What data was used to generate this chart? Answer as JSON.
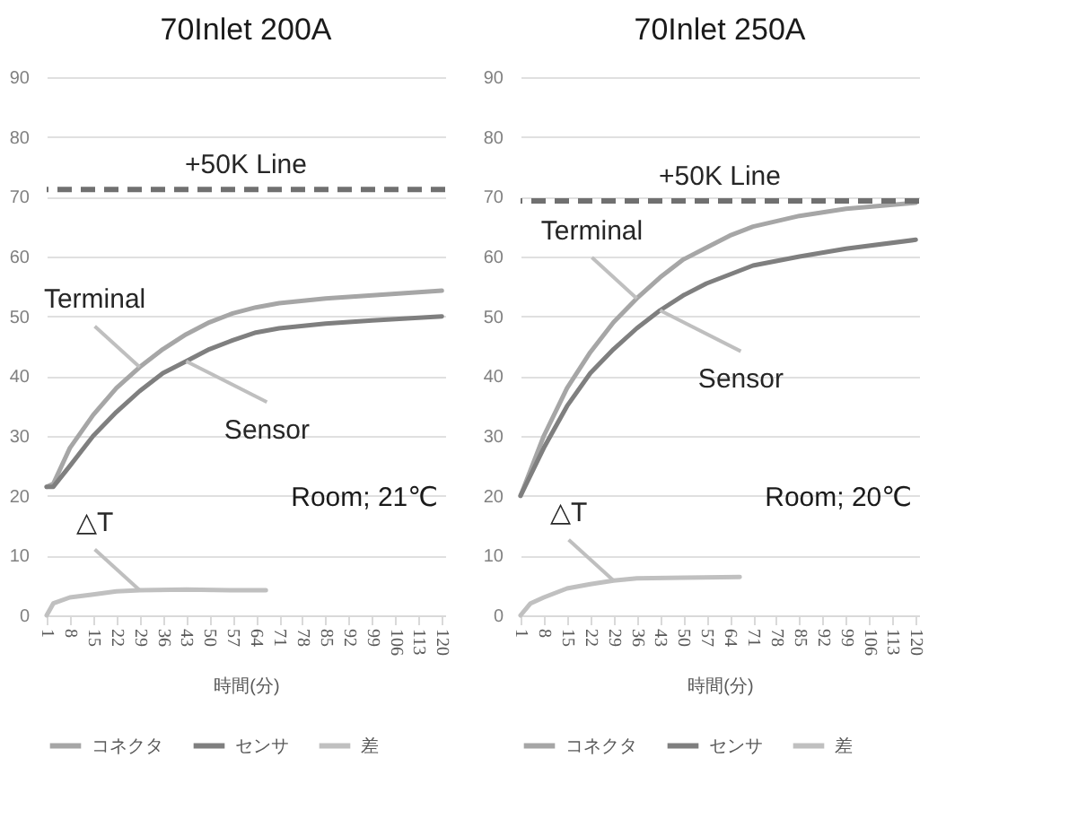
{
  "chart_data": [
    {
      "type": "line",
      "title": "70Inlet 200A",
      "xlabel": "時間(分)",
      "xlim": [
        1,
        121
      ],
      "xticks": [
        1,
        8,
        15,
        22,
        29,
        36,
        43,
        50,
        57,
        64,
        71,
        78,
        85,
        92,
        99,
        106,
        113,
        120
      ],
      "ylim": [
        0,
        90
      ],
      "yticks": [
        0,
        10,
        20,
        30,
        40,
        50,
        60,
        70,
        80,
        90
      ],
      "grid": "y",
      "legend": "bottom",
      "line_style": "solid",
      "series": [
        {
          "name": "コネクタ",
          "color": "#a6a6a6",
          "x": [
            1,
            3,
            8,
            15,
            22,
            29,
            36,
            43,
            50,
            57,
            64,
            71,
            85,
            99,
            120
          ],
          "values": [
            21.5,
            22,
            28,
            33.5,
            38,
            41.5,
            44.5,
            47,
            49,
            50.5,
            51.5,
            52.2,
            53,
            53.5,
            54.3
          ]
        },
        {
          "name": "センサ",
          "color": "#7f7f7f",
          "x": [
            1,
            3,
            8,
            15,
            22,
            29,
            36,
            43,
            50,
            57,
            64,
            71,
            85,
            99,
            120
          ],
          "values": [
            21.5,
            21.5,
            25,
            30,
            34,
            37.5,
            40.5,
            42.5,
            44.5,
            46,
            47.3,
            48,
            48.8,
            49.3,
            50
          ]
        },
        {
          "name": "差",
          "color": "#c0c0c0",
          "x": [
            1,
            3,
            8,
            15,
            22,
            29,
            43,
            57,
            67
          ],
          "values": [
            0,
            2,
            3,
            3.5,
            4,
            4.2,
            4.3,
            4.2,
            4.2
          ]
        }
      ],
      "ref_lines": [
        {
          "axis": "y",
          "value": 71.2,
          "label": "+50K Line",
          "color": "#707070",
          "line_style": "dashed"
        }
      ],
      "annotations": [
        {
          "text": "Terminal",
          "x": 29,
          "y": 41.5
        },
        {
          "text": "Sensor",
          "x": 43,
          "y": 42.5
        },
        {
          "text": "△T",
          "x": 29,
          "y": 4.2
        },
        "Room;  21℃"
      ]
    },
    {
      "type": "line",
      "title": "70Inlet 250A",
      "xlabel": "時間(分)",
      "xlim": [
        1,
        121
      ],
      "xticks": [
        1,
        8,
        15,
        22,
        29,
        36,
        43,
        50,
        57,
        64,
        71,
        78,
        85,
        92,
        99,
        106,
        113,
        120
      ],
      "ylim": [
        0,
        90
      ],
      "yticks": [
        0,
        10,
        20,
        30,
        40,
        50,
        60,
        70,
        80,
        90
      ],
      "grid": "y",
      "legend": "bottom",
      "line_style": "solid",
      "series": [
        {
          "name": "コネクタ",
          "color": "#a6a6a6",
          "x": [
            1,
            8,
            15,
            22,
            29,
            36,
            43,
            50,
            57,
            64,
            71,
            85,
            99,
            120
          ],
          "values": [
            20,
            30,
            38,
            44,
            49,
            53,
            56.5,
            59.5,
            61.5,
            63.5,
            65,
            66.8,
            68,
            69
          ]
        },
        {
          "name": "センサ",
          "color": "#7f7f7f",
          "x": [
            1,
            8,
            15,
            22,
            29,
            36,
            43,
            50,
            57,
            64,
            71,
            85,
            99,
            120
          ],
          "values": [
            20,
            28,
            35,
            40.5,
            44.5,
            48,
            51,
            53.5,
            55.5,
            57,
            58.5,
            60,
            61.3,
            62.8
          ]
        },
        {
          "name": "差",
          "color": "#c0c0c0",
          "x": [
            1,
            4,
            8,
            15,
            22,
            29,
            36,
            50,
            67
          ],
          "values": [
            0,
            2,
            3,
            4.5,
            5.2,
            5.8,
            6.2,
            6.3,
            6.4
          ]
        }
      ],
      "ref_lines": [
        {
          "axis": "y",
          "value": 69.3,
          "label": "+50K Line",
          "color": "#707070",
          "line_style": "dashed"
        }
      ],
      "annotations": [
        {
          "text": "Terminal",
          "x": 36,
          "y": 53
        },
        {
          "text": "Sensor",
          "x": 43,
          "y": 51
        },
        {
          "text": "△T",
          "x": 29,
          "y": 5.8
        },
        "Room;  20℃"
      ]
    }
  ]
}
